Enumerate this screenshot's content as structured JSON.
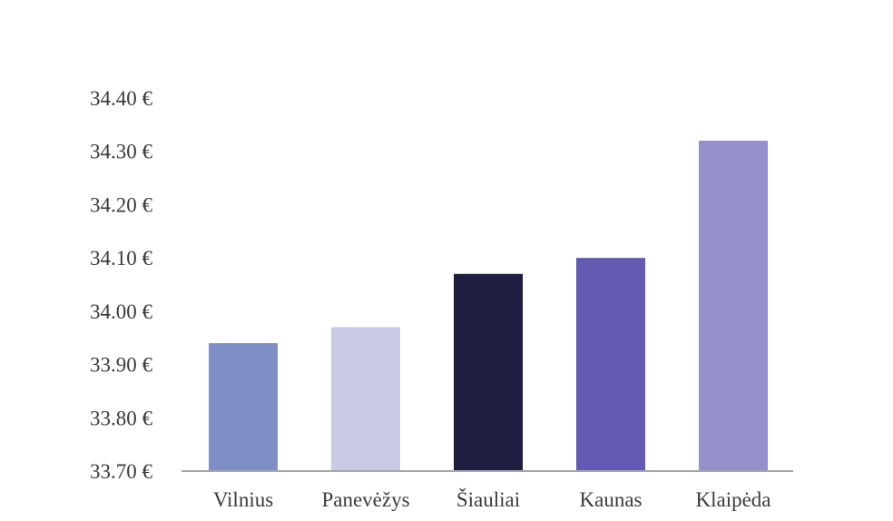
{
  "chart_data": {
    "type": "bar",
    "categories": [
      "Vilnius",
      "Panevėžys",
      "Šiauliai",
      "Kaunas",
      "Klaipėda"
    ],
    "values": [
      33.94,
      33.97,
      34.07,
      34.1,
      34.32
    ],
    "colors": [
      "#7f8ec4",
      "#c9c9e6",
      "#1f1d40",
      "#635bb2",
      "#9690cd"
    ],
    "ylim": [
      33.7,
      34.4
    ],
    "yticks": [
      34.4,
      34.3,
      34.2,
      34.1,
      34.0,
      33.9,
      33.8,
      33.7
    ],
    "ytick_labels": [
      "34.40 €",
      "34.30 €",
      "34.20 €",
      "34.10 €",
      "34.00 €",
      "33.90 €",
      "33.80 €",
      "33.70 €"
    ],
    "title": "",
    "xlabel": "",
    "ylabel": "",
    "grid": false,
    "legend": false
  }
}
